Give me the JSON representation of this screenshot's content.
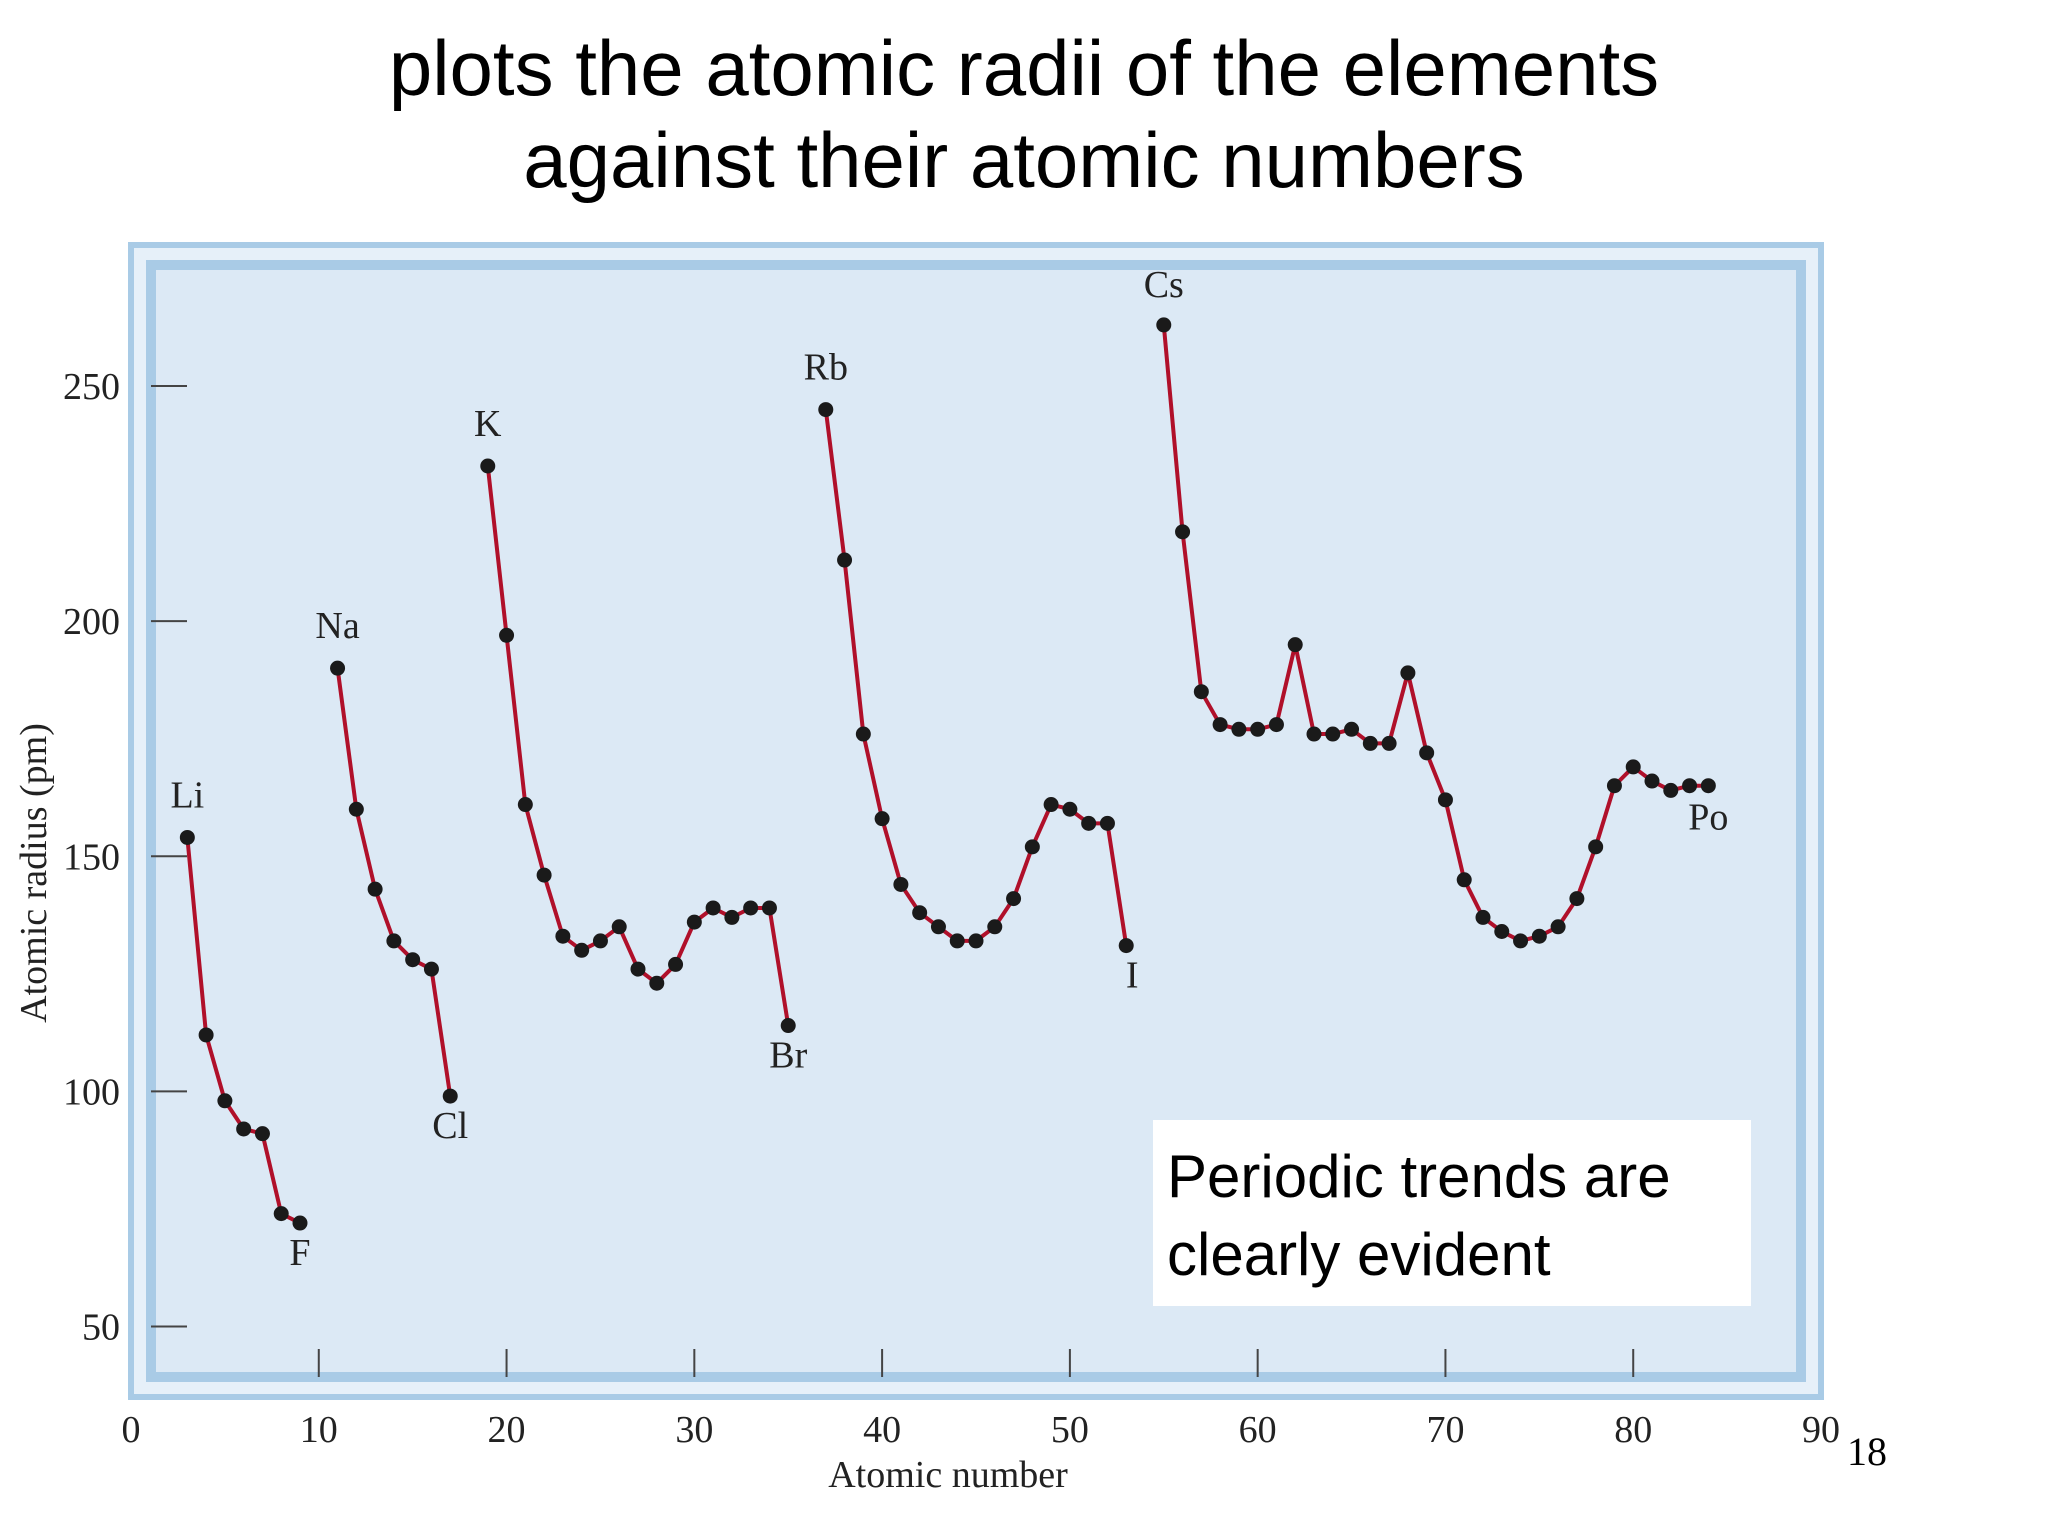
{
  "slide": {
    "title_line1": "plots the atomic radii of the elements",
    "title_line2": "against their atomic numbers",
    "callout_line1": "Periodic trends are",
    "callout_line2": "clearly evident",
    "slide_number": "18"
  },
  "colors": {
    "plot_background": "#dce9f5",
    "frame": "#a9cbe6",
    "line": "#b0102a",
    "marker": "#1a1a1a",
    "axis": "#444444"
  },
  "chart_data": {
    "type": "line",
    "title": "",
    "xlabel": "Atomic number",
    "ylabel": "Atomic radius (pm)",
    "xlim": [
      0,
      90
    ],
    "ylim": [
      35,
      280
    ],
    "x_ticks": [
      0,
      10,
      20,
      30,
      40,
      50,
      60,
      70,
      80,
      90
    ],
    "y_ticks": [
      50,
      100,
      150,
      200,
      250
    ],
    "grid": false,
    "series": [
      {
        "x": [
          3,
          4,
          5,
          6,
          7,
          8,
          9
        ],
        "y": [
          154,
          112,
          98,
          92,
          91,
          74,
          72
        ]
      },
      {
        "x": [
          11,
          12,
          13,
          14,
          15,
          16,
          17
        ],
        "y": [
          190,
          160,
          143,
          132,
          128,
          126,
          99
        ]
      },
      {
        "x": [
          19,
          20,
          21,
          22,
          23,
          24,
          25,
          26,
          27,
          28,
          29,
          30,
          31,
          32,
          33,
          34,
          35
        ],
        "y": [
          233,
          197,
          161,
          146,
          133,
          130,
          132,
          135,
          126,
          123,
          127,
          136,
          139,
          137,
          139,
          139,
          114
        ]
      },
      {
        "x": [
          37,
          38,
          39,
          40,
          41,
          42,
          43,
          44,
          45,
          46,
          47,
          48,
          49,
          50,
          51,
          52,
          53
        ],
        "y": [
          245,
          213,
          176,
          158,
          144,
          138,
          135,
          132,
          132,
          135,
          141,
          152,
          161,
          160,
          157,
          157,
          131
        ]
      },
      {
        "x": [
          55,
          56,
          57,
          58,
          59,
          60,
          61,
          62,
          63,
          64,
          65,
          66,
          67,
          68,
          69,
          70,
          71,
          72,
          73,
          74,
          75,
          76,
          77,
          78,
          79,
          80,
          81,
          82,
          83,
          84
        ],
        "y": [
          263,
          219,
          185,
          178,
          177,
          177,
          178,
          195,
          176,
          176,
          177,
          174,
          174,
          189,
          172,
          162,
          145,
          137,
          134,
          132,
          133,
          135,
          141,
          152,
          165,
          169,
          166,
          164,
          165,
          165
        ]
      }
    ],
    "annotations": [
      {
        "label": "Li",
        "x": 3,
        "y": 154
      },
      {
        "label": "F",
        "x": 9,
        "y": 72
      },
      {
        "label": "Na",
        "x": 11,
        "y": 190
      },
      {
        "label": "Cl",
        "x": 17,
        "y": 99
      },
      {
        "label": "K",
        "x": 19,
        "y": 233
      },
      {
        "label": "Br",
        "x": 35,
        "y": 114
      },
      {
        "label": "Rb",
        "x": 37,
        "y": 245
      },
      {
        "label": "I",
        "x": 53,
        "y": 131
      },
      {
        "label": "Cs",
        "x": 55,
        "y": 263
      },
      {
        "label": "Po",
        "x": 84,
        "y": 165
      }
    ]
  }
}
